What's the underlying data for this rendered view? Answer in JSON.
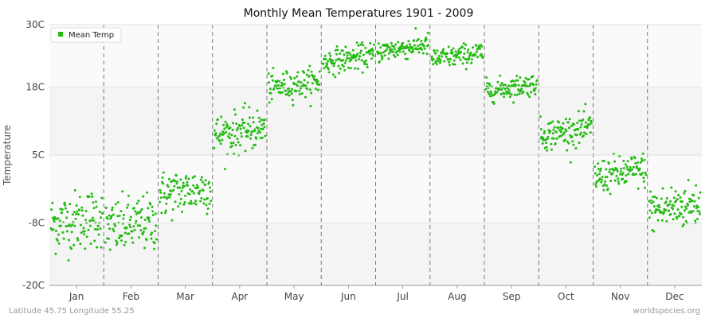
{
  "chart_data": {
    "type": "scatter",
    "title": "Monthly Mean Temperatures 1901 - 2009",
    "xlabel": "",
    "ylabel": "Temperature",
    "y_ticks": [
      "30C",
      "18C",
      "5C",
      "-8C",
      "-20C"
    ],
    "y_tick_values": [
      30,
      18,
      5,
      -8,
      -20
    ],
    "ylim": [
      -20,
      30
    ],
    "categories": [
      "Jan",
      "Feb",
      "Mar",
      "Apr",
      "May",
      "Jun",
      "Jul",
      "Aug",
      "Sep",
      "Oct",
      "Nov",
      "Dec"
    ],
    "grid": true,
    "legend_position": "top-left",
    "series": [
      {
        "name": "Mean Temp",
        "color": "#22bb11",
        "points_per_month": 109,
        "monthly_mean": [
          -7.5,
          -8.5,
          -2.0,
          9.5,
          18.5,
          23.5,
          25.5,
          24.0,
          18.0,
          9.5,
          1.5,
          -5.0
        ],
        "monthly_spread": [
          3.8,
          3.6,
          3.0,
          2.6,
          1.8,
          1.6,
          1.4,
          1.4,
          1.4,
          2.0,
          2.2,
          3.0
        ]
      }
    ]
  },
  "footer": {
    "left": "Latitude 45.75 Longitude 55.25",
    "right": "worldspecies.org"
  }
}
